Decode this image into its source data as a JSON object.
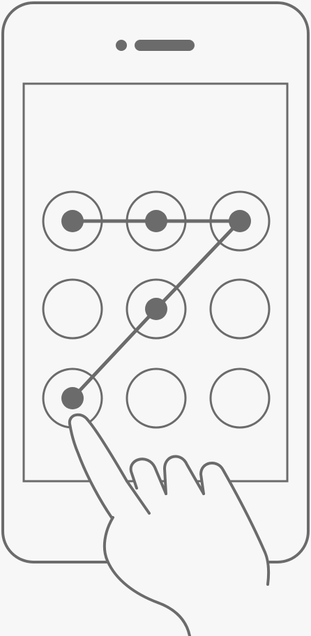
{
  "illustration": {
    "subject": "pattern-lock",
    "colors": {
      "stroke": "#6b6b6b",
      "background": "#f7f7f7",
      "fill_white": "#f7f7f7"
    },
    "grid": {
      "rows": 3,
      "cols": 3,
      "selected_dots": [
        {
          "row": 1,
          "col": 1
        },
        {
          "row": 1,
          "col": 2
        },
        {
          "row": 1,
          "col": 3
        },
        {
          "row": 2,
          "col": 2
        },
        {
          "row": 3,
          "col": 1
        }
      ],
      "pattern_order": [
        {
          "row": 1,
          "col": 1
        },
        {
          "row": 1,
          "col": 2
        },
        {
          "row": 1,
          "col": 3
        },
        {
          "row": 2,
          "col": 2
        },
        {
          "row": 3,
          "col": 1
        }
      ]
    },
    "icons": {
      "phone": "smartphone-outline-icon",
      "hand": "pointing-hand-icon",
      "camera": "front-camera-icon",
      "speaker": "earpiece-speaker-icon"
    }
  }
}
